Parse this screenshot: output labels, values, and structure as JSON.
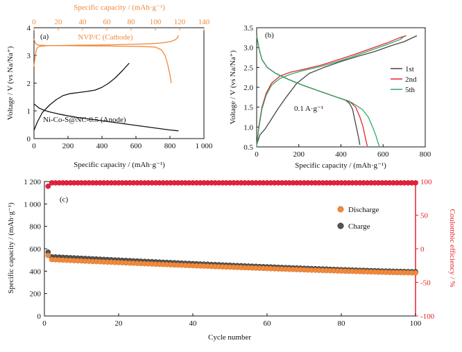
{
  "colors": {
    "orange": "#f0883a",
    "black": "#111111",
    "red": "#e8202a",
    "green": "#2fa86a",
    "dark": "#444444",
    "discharge_marker": "#f28a3c",
    "charge_marker": "#555555",
    "ce_marker": "#e8203c"
  },
  "chart_data": [
    {
      "panel": "a",
      "type": "line",
      "panel_label": "(a)",
      "xlabel": "Specific capacity / (mAh·g⁻¹)",
      "ylabel": "Voltage / V (vs Na/Na⁺)",
      "top_xlabel": "Specific capacity / (mAh·g⁻¹)",
      "xlim": [
        0,
        1000
      ],
      "top_xlim": [
        0,
        140
      ],
      "ylim": [
        0,
        4
      ],
      "xticks": [
        "0",
        "200",
        "400",
        "600",
        "800",
        "1 000"
      ],
      "top_xticks": [
        "0",
        "20",
        "40",
        "60",
        "80",
        "100",
        "120",
        "140"
      ],
      "yticks": [
        "0",
        "1",
        "2",
        "3",
        "4"
      ],
      "annotations": [
        "NVP/C (Cathode)",
        "Ni-Co-S@NC-0.5 (Anode)"
      ],
      "series": [
        {
          "axis": "bottom",
          "color": "black",
          "x": [
            0,
            30,
            60,
            100,
            150,
            200,
            260,
            320,
            380,
            440,
            500,
            560,
            620,
            680,
            740,
            800,
            850
          ],
          "y": [
            1.25,
            1.1,
            1.02,
            0.95,
            0.88,
            0.82,
            0.76,
            0.71,
            0.66,
            0.61,
            0.56,
            0.51,
            0.46,
            0.41,
            0.36,
            0.31,
            0.28
          ]
        },
        {
          "axis": "bottom",
          "color": "black",
          "x": [
            0,
            20,
            50,
            90,
            130,
            170,
            210,
            260,
            310,
            360,
            400,
            440,
            480,
            520,
            560
          ],
          "y": [
            0.3,
            0.6,
            0.95,
            1.2,
            1.4,
            1.55,
            1.62,
            1.66,
            1.7,
            1.75,
            1.85,
            2.0,
            2.2,
            2.45,
            2.72
          ]
        },
        {
          "axis": "top",
          "color": "orange",
          "x": [
            0,
            1,
            2,
            3,
            5,
            10,
            20,
            40,
            60,
            80,
            95,
            105,
            110,
            114,
            116,
            118,
            119
          ],
          "y": [
            2.6,
            3.0,
            3.2,
            3.3,
            3.33,
            3.35,
            3.36,
            3.37,
            3.38,
            3.4,
            3.42,
            3.45,
            3.48,
            3.52,
            3.56,
            3.62,
            3.72
          ]
        },
        {
          "axis": "top",
          "color": "orange",
          "x": [
            0,
            1,
            2,
            3,
            5,
            10,
            30,
            60,
            90,
            100,
            105,
            108,
            110,
            112,
            113
          ],
          "y": [
            3.6,
            3.45,
            3.4,
            3.38,
            3.37,
            3.36,
            3.35,
            3.34,
            3.32,
            3.3,
            3.2,
            3.0,
            2.7,
            2.3,
            2.0
          ]
        }
      ]
    },
    {
      "panel": "b",
      "type": "line",
      "panel_label": "(b)",
      "xlabel": "Specific capacity / (mAh·g⁻¹)",
      "ylabel": "Voltage / V (vs Na/Na⁺)",
      "xlim": [
        0,
        800
      ],
      "ylim": [
        0.5,
        3.5
      ],
      "xticks": [
        "0",
        "200",
        "400",
        "600",
        "800"
      ],
      "yticks": [
        "0.5",
        "1.0",
        "1.5",
        "2.0",
        "2.5",
        "3.0",
        "3.5"
      ],
      "legend_labels": [
        "1st",
        "2nd",
        "5th"
      ],
      "annotation": "0.1 A·g⁻¹",
      "series": [
        {
          "name": "1st",
          "color": "dark",
          "part": "discharge",
          "x": [
            0,
            10,
            25,
            50,
            90,
            150,
            220,
            300,
            380,
            420,
            440,
            455,
            465,
            475,
            485,
            490
          ],
          "y": [
            3.3,
            3.0,
            2.7,
            2.5,
            2.35,
            2.2,
            2.05,
            1.9,
            1.75,
            1.68,
            1.6,
            1.45,
            1.2,
            0.95,
            0.7,
            0.55
          ]
        },
        {
          "name": "1st",
          "color": "dark",
          "part": "charge",
          "x": [
            0,
            15,
            40,
            70,
            100,
            140,
            190,
            250,
            320,
            400,
            480,
            560,
            640,
            700,
            760
          ],
          "y": [
            0.55,
            0.8,
            0.95,
            1.2,
            1.45,
            1.75,
            2.1,
            2.35,
            2.5,
            2.65,
            2.78,
            2.9,
            3.05,
            3.15,
            3.3
          ]
        },
        {
          "name": "2nd",
          "color": "red",
          "part": "discharge",
          "x": [
            0,
            10,
            25,
            50,
            90,
            150,
            220,
            300,
            380,
            440,
            470,
            490,
            505,
            515,
            525
          ],
          "y": [
            3.3,
            3.0,
            2.7,
            2.5,
            2.35,
            2.2,
            2.05,
            1.9,
            1.75,
            1.65,
            1.5,
            1.25,
            1.0,
            0.75,
            0.52
          ]
        },
        {
          "name": "2nd",
          "color": "red",
          "part": "charge",
          "x": [
            0,
            10,
            25,
            45,
            70,
            110,
            160,
            220,
            300,
            380,
            460,
            540,
            620,
            680,
            710
          ],
          "y": [
            0.52,
            1.0,
            1.5,
            1.85,
            2.1,
            2.28,
            2.38,
            2.45,
            2.55,
            2.68,
            2.82,
            2.97,
            3.12,
            3.25,
            3.3
          ]
        },
        {
          "name": "5th",
          "color": "green",
          "part": "discharge",
          "x": [
            0,
            10,
            25,
            50,
            90,
            150,
            220,
            300,
            380,
            450,
            500,
            530,
            550,
            565,
            575,
            583
          ],
          "y": [
            3.3,
            3.0,
            2.7,
            2.5,
            2.35,
            2.2,
            2.05,
            1.9,
            1.75,
            1.62,
            1.45,
            1.25,
            1.0,
            0.8,
            0.62,
            0.5
          ]
        },
        {
          "name": "5th",
          "color": "green",
          "part": "charge",
          "x": [
            0,
            10,
            25,
            45,
            70,
            110,
            160,
            220,
            300,
            380,
            460,
            540,
            620,
            680,
            700
          ],
          "y": [
            0.5,
            0.95,
            1.45,
            1.8,
            2.05,
            2.22,
            2.33,
            2.42,
            2.52,
            2.64,
            2.78,
            2.93,
            3.08,
            3.2,
            3.28
          ]
        }
      ]
    },
    {
      "panel": "c",
      "type": "scatter",
      "panel_label": "(c)",
      "xlabel": "Cycle number",
      "ylabel": "Specific capacity / (mAh·g⁻¹)",
      "ylabel_right": "Coulombic efficiency / %",
      "xlim": [
        0,
        100
      ],
      "ylim": [
        0,
        1200
      ],
      "ylim_right": [
        -100,
        100
      ],
      "xticks": [
        "0",
        "20",
        "40",
        "60",
        "80",
        "100"
      ],
      "yticks": [
        "0",
        "200",
        "400",
        "600",
        "800",
        "1 000",
        "1 200"
      ],
      "yticks_right": [
        "-100",
        "-50",
        "0",
        "50",
        "100"
      ],
      "legend_labels": [
        "Discharge",
        "Charge"
      ],
      "discharge": {
        "start": 505,
        "end": 385,
        "cycles": 100,
        "first": 540
      },
      "charge": {
        "start": 530,
        "end": 395,
        "cycles": 100,
        "first": 570
      },
      "coulombic_efficiency": {
        "first": 93,
        "rest": 98,
        "cycles": 100
      }
    }
  ]
}
